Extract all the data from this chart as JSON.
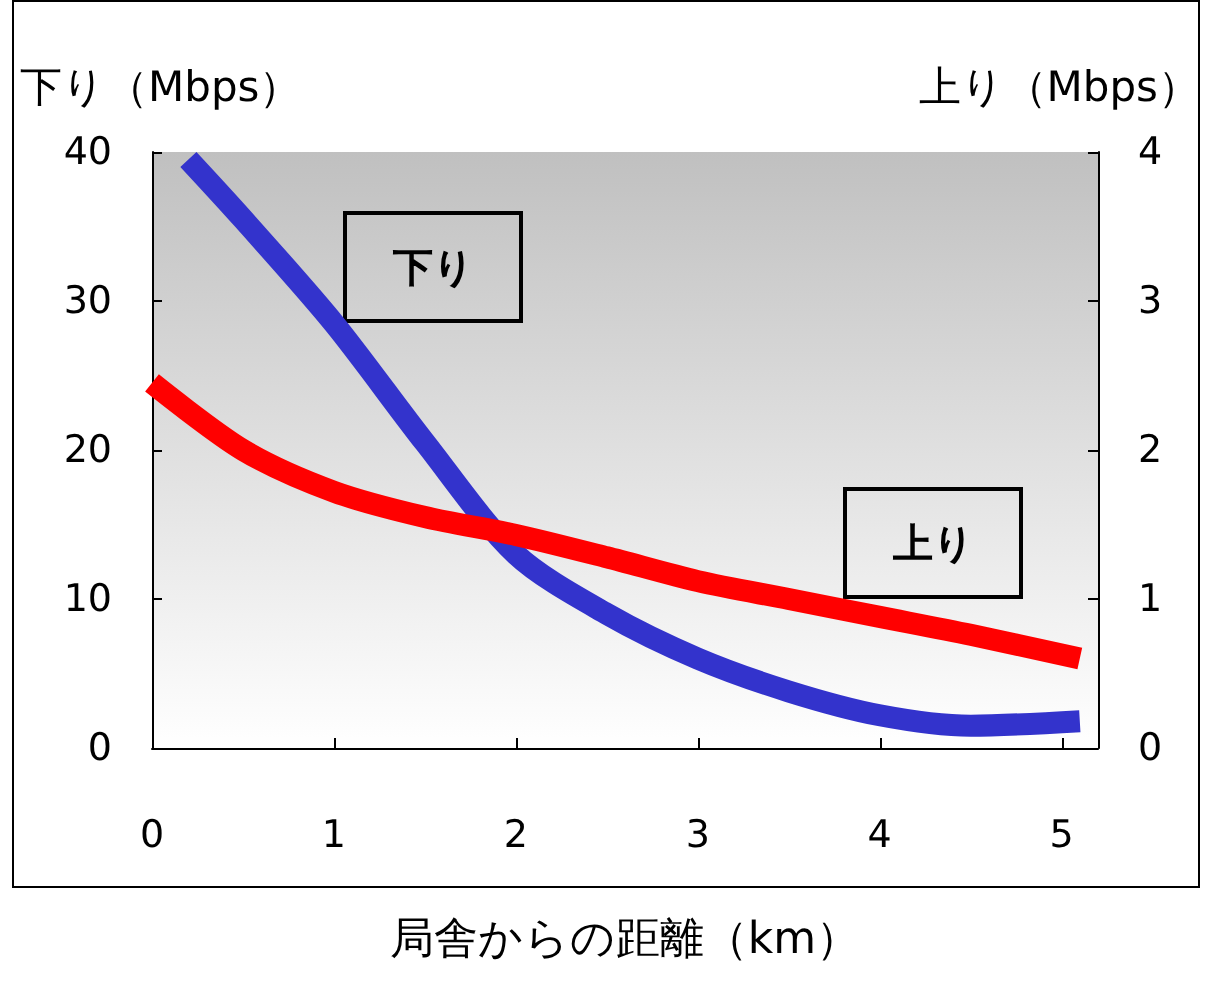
{
  "chart_data": {
    "type": "line",
    "xlabel": "局舎からの距離（km）",
    "ylabel": "下り（Mbps）",
    "y2label": "上り（Mbps）",
    "xlim": [
      0,
      5.2
    ],
    "xticks": [
      0,
      1,
      2,
      3,
      4,
      5
    ],
    "ylim": [
      0,
      40
    ],
    "yticks": [
      0,
      10,
      20,
      30,
      40
    ],
    "y2lim": [
      0,
      4
    ],
    "y2ticks": [
      0,
      1,
      2,
      3,
      4
    ],
    "grid": false,
    "legend": false,
    "marker": "none",
    "series": [
      {
        "name": "下り",
        "color": "#3333cc",
        "x": [
          0.2,
          0.5,
          1,
          1.5,
          2,
          2.5,
          3,
          3.5,
          4,
          4.5,
          5.1
        ],
        "values": [
          39.5,
          35.5,
          28.5,
          20.5,
          13,
          9,
          6,
          3.8,
          2.2,
          1.5,
          1.8
        ]
      },
      {
        "name": "上り",
        "color": "#ff0000",
        "axis": "y2",
        "x": [
          0,
          0.5,
          1,
          1.5,
          2,
          2.5,
          3,
          3.5,
          4,
          4.5,
          5.1
        ],
        "values": [
          2.45,
          2.0,
          1.72,
          1.55,
          1.43,
          1.28,
          1.12,
          1.0,
          0.88,
          0.76,
          0.6
        ]
      }
    ]
  }
}
